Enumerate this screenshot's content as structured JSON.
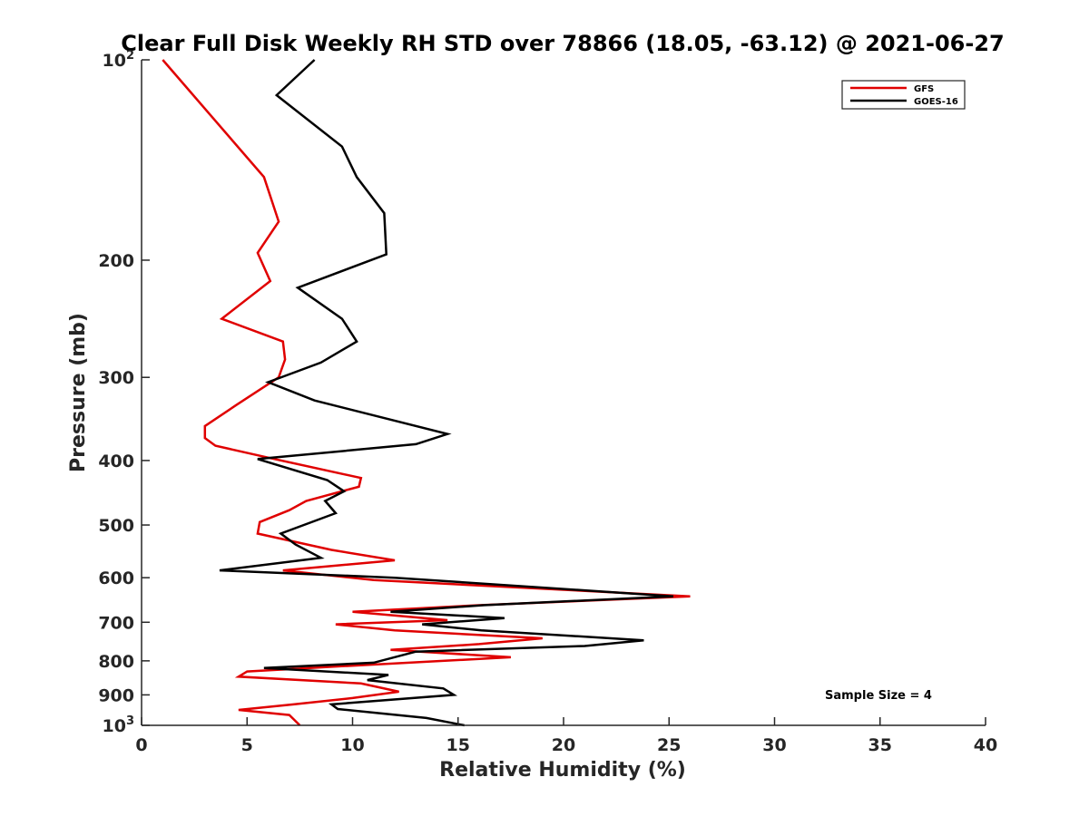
{
  "chart_data": {
    "type": "line",
    "title": "Clear Full Disk Weekly RH STD over 78866 (18.05, -63.12) @ 2021-06-27",
    "xlabel": "Relative Humidity (%)",
    "ylabel": "Pressure (mb)",
    "xlim": [
      0,
      40
    ],
    "ylim": [
      100,
      1000
    ],
    "y_scale": "log",
    "y_reversed": true,
    "x_ticks": [
      "0",
      "5",
      "10",
      "15",
      "20",
      "25",
      "30",
      "35",
      "40"
    ],
    "x_tick_values": [
      0,
      5,
      10,
      15,
      20,
      25,
      30,
      35,
      40
    ],
    "y_ticks": [
      {
        "value": 100,
        "base": "10",
        "sup": "2"
      },
      {
        "value": 200,
        "base": "200",
        "sup": ""
      },
      {
        "value": 300,
        "base": "300",
        "sup": ""
      },
      {
        "value": 400,
        "base": "400",
        "sup": ""
      },
      {
        "value": 500,
        "base": "500",
        "sup": ""
      },
      {
        "value": 600,
        "base": "600",
        "sup": ""
      },
      {
        "value": 700,
        "base": "700",
        "sup": ""
      },
      {
        "value": 800,
        "base": "800",
        "sup": ""
      },
      {
        "value": 900,
        "base": "900",
        "sup": ""
      },
      {
        "value": 1000,
        "base": "10",
        "sup": "3"
      }
    ],
    "grid": false,
    "legend_position": "top-right",
    "annotation": "Sample Size = 4",
    "series": [
      {
        "name": "GFS",
        "color": "#e00000",
        "points": [
          [
            1.0,
            100
          ],
          [
            5.8,
            150
          ],
          [
            6.5,
            175
          ],
          [
            5.5,
            195
          ],
          [
            6.1,
            215
          ],
          [
            3.8,
            245
          ],
          [
            6.7,
            265
          ],
          [
            6.8,
            282
          ],
          [
            6.5,
            300
          ],
          [
            4.5,
            330
          ],
          [
            3.0,
            355
          ],
          [
            3.0,
            370
          ],
          [
            3.5,
            380
          ],
          [
            6.3,
            398
          ],
          [
            10.4,
            425
          ],
          [
            10.3,
            438
          ],
          [
            7.8,
            460
          ],
          [
            7.0,
            475
          ],
          [
            5.6,
            495
          ],
          [
            5.5,
            515
          ],
          [
            9.0,
            545
          ],
          [
            12.0,
            565
          ],
          [
            6.7,
            585
          ],
          [
            11.0,
            605
          ],
          [
            26.0,
            640
          ],
          [
            16.0,
            660
          ],
          [
            10.0,
            675
          ],
          [
            14.5,
            695
          ],
          [
            9.2,
            705
          ],
          [
            12.0,
            720
          ],
          [
            19.0,
            740
          ],
          [
            16.0,
            755
          ],
          [
            11.8,
            770
          ],
          [
            17.5,
            790
          ],
          [
            9.5,
            815
          ],
          [
            5.0,
            830
          ],
          [
            4.6,
            845
          ],
          [
            10.4,
            865
          ],
          [
            12.2,
            890
          ],
          [
            10.0,
            910
          ],
          [
            7.2,
            930
          ],
          [
            4.6,
            948
          ],
          [
            7.0,
            965
          ],
          [
            7.5,
            1000
          ]
        ]
      },
      {
        "name": "GOES-16",
        "color": "#000000",
        "points": [
          [
            8.2,
            100
          ],
          [
            6.4,
            113
          ],
          [
            9.5,
            135
          ],
          [
            10.2,
            150
          ],
          [
            11.5,
            170
          ],
          [
            11.6,
            196
          ],
          [
            7.4,
            220
          ],
          [
            9.5,
            245
          ],
          [
            10.2,
            265
          ],
          [
            8.5,
            285
          ],
          [
            6.0,
            305
          ],
          [
            8.2,
            325
          ],
          [
            14.5,
            365
          ],
          [
            13.0,
            378
          ],
          [
            5.5,
            398
          ],
          [
            8.8,
            428
          ],
          [
            9.6,
            445
          ],
          [
            8.7,
            460
          ],
          [
            9.2,
            480
          ],
          [
            6.6,
            515
          ],
          [
            7.3,
            535
          ],
          [
            8.5,
            560
          ],
          [
            3.7,
            585
          ],
          [
            12.0,
            600
          ],
          [
            25.2,
            640
          ],
          [
            16.2,
            660
          ],
          [
            11.8,
            675
          ],
          [
            17.2,
            690
          ],
          [
            13.3,
            705
          ],
          [
            16.1,
            720
          ],
          [
            23.8,
            745
          ],
          [
            21.0,
            760
          ],
          [
            13.0,
            775
          ],
          [
            11.0,
            805
          ],
          [
            5.8,
            820
          ],
          [
            11.7,
            840
          ],
          [
            10.7,
            855
          ],
          [
            14.3,
            880
          ],
          [
            14.8,
            900
          ],
          [
            9.0,
            930
          ],
          [
            9.3,
            945
          ],
          [
            13.5,
            975
          ],
          [
            15.3,
            1000
          ]
        ]
      }
    ]
  },
  "legend": {
    "items": [
      {
        "label": "GFS",
        "color": "#e00000"
      },
      {
        "label": "GOES-16",
        "color": "#000000"
      }
    ]
  }
}
